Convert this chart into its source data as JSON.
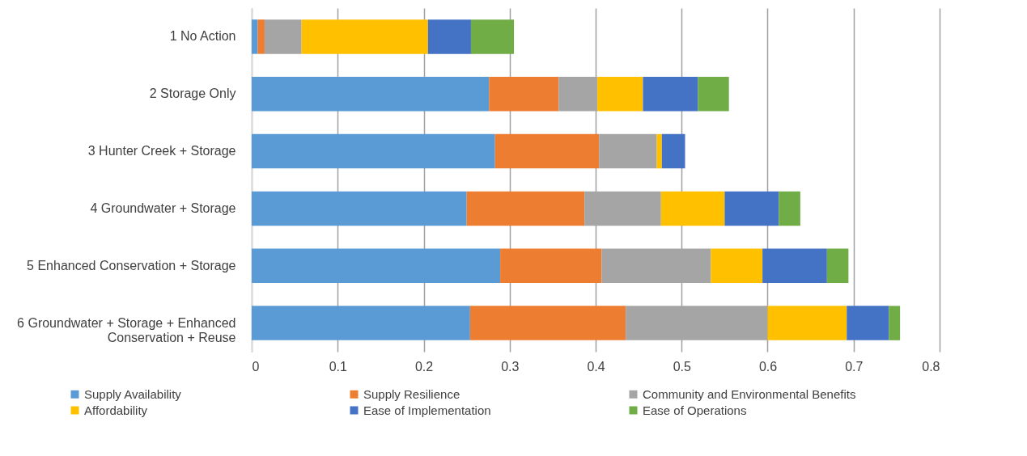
{
  "chart_data": {
    "type": "bar",
    "orientation": "horizontal",
    "stacked": true,
    "categories": [
      "1 No Action",
      "2 Storage Only",
      "3 Hunter Creek + Storage",
      "4 Groundwater + Storage",
      "5 Enhanced Conservation + Storage",
      "6 Groundwater + Storage + Enhanced Conservation + Reuse"
    ],
    "series": [
      {
        "name": "Supply Availability",
        "color": "#5b9bd5",
        "values": [
          0.007,
          0.276,
          0.283,
          0.25,
          0.289,
          0.254
        ]
      },
      {
        "name": "Supply Resilience",
        "color": "#ed7d31",
        "values": [
          0.008,
          0.081,
          0.121,
          0.137,
          0.118,
          0.181
        ]
      },
      {
        "name": "Community and Environmental Benefits",
        "color": "#a5a5a5",
        "values": [
          0.043,
          0.045,
          0.067,
          0.089,
          0.127,
          0.165
        ]
      },
      {
        "name": "Affordability",
        "color": "#ffc000",
        "values": [
          0.147,
          0.053,
          0.006,
          0.074,
          0.06,
          0.092
        ]
      },
      {
        "name": "Ease of Implementation",
        "color": "#4472c4",
        "values": [
          0.05,
          0.064,
          0.027,
          0.063,
          0.075,
          0.049
        ]
      },
      {
        "name": "Ease of Operations",
        "color": "#70ad47",
        "values": [
          0.05,
          0.036,
          0,
          0.025,
          0.025,
          0.013
        ]
      }
    ],
    "xlim": [
      0,
      0.8
    ],
    "xticks": [
      0,
      0.1,
      0.2,
      0.3,
      0.4,
      0.5,
      0.6,
      0.7,
      0.8
    ],
    "grid": "x",
    "legend": "bottom"
  }
}
